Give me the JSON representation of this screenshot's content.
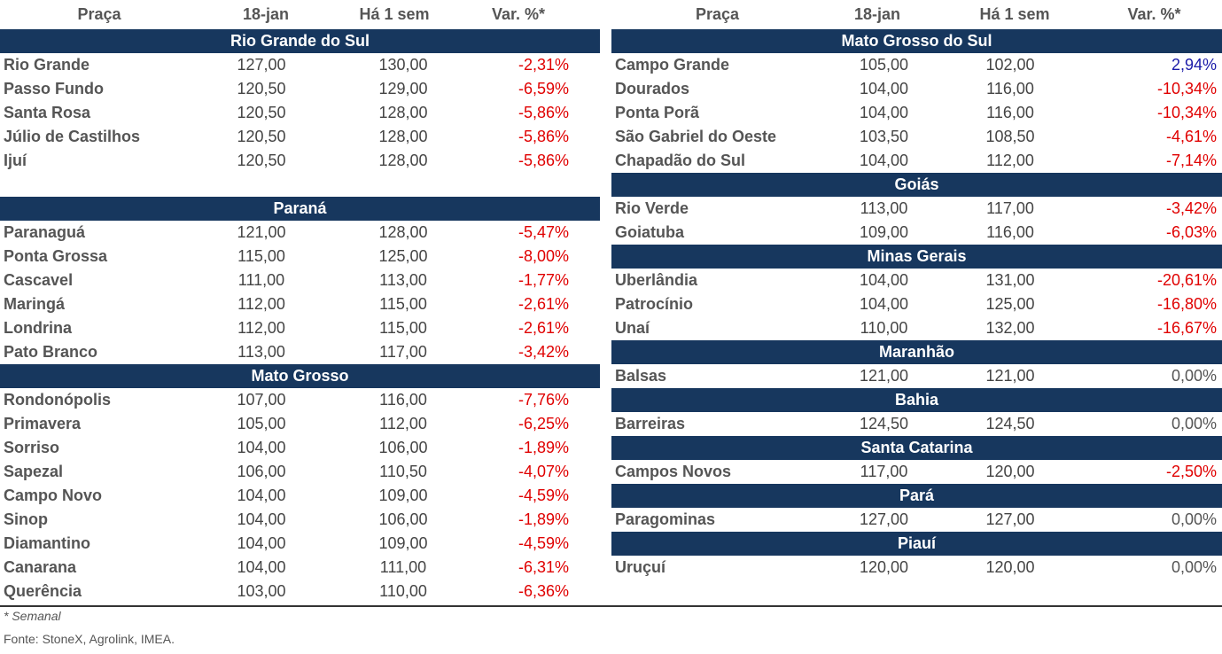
{
  "header": {
    "col_place": "Praça",
    "col_date": "18-jan",
    "col_week": "Há 1 sem",
    "col_var": "Var. %*"
  },
  "left": [
    {
      "section": "Rio Grande do Sul",
      "rows": [
        [
          "Rio Grande",
          "127,00",
          "130,00",
          "-2,31%"
        ],
        [
          "Passo Fundo",
          "120,50",
          "129,00",
          "-6,59%"
        ],
        [
          "Santa Rosa",
          "120,50",
          "128,00",
          "-5,86%"
        ],
        [
          "Júlio de Castilhos",
          "120,50",
          "128,00",
          "-5,86%"
        ],
        [
          "Ijuí",
          "120,50",
          "128,00",
          "-5,86%"
        ]
      ],
      "gap_after": true
    },
    {
      "section": "Paraná",
      "rows": [
        [
          "Paranaguá",
          "121,00",
          "128,00",
          "-5,47%"
        ],
        [
          "Ponta Grossa",
          "115,00",
          "125,00",
          "-8,00%"
        ],
        [
          "Cascavel",
          "111,00",
          "113,00",
          "-1,77%"
        ],
        [
          "Maringá",
          "112,00",
          "115,00",
          "-2,61%"
        ],
        [
          "Londrina",
          "112,00",
          "115,00",
          "-2,61%"
        ],
        [
          "Pato Branco",
          "113,00",
          "117,00",
          "-3,42%"
        ]
      ]
    },
    {
      "section": "Mato Grosso",
      "rows": [
        [
          "Rondonópolis",
          "107,00",
          "116,00",
          "-7,76%"
        ],
        [
          "Primavera",
          "105,00",
          "112,00",
          "-6,25%"
        ],
        [
          "Sorriso",
          "104,00",
          "106,00",
          "-1,89%"
        ],
        [
          "Sapezal",
          "106,00",
          "110,50",
          "-4,07%"
        ],
        [
          "Campo Novo",
          "104,00",
          "109,00",
          "-4,59%"
        ],
        [
          "Sinop",
          "104,00",
          "106,00",
          "-1,89%"
        ],
        [
          "Diamantino",
          "104,00",
          "109,00",
          "-4,59%"
        ],
        [
          "Canarana",
          "104,00",
          "111,00",
          "-6,31%"
        ],
        [
          "Querência",
          "103,00",
          "110,00",
          "-6,36%"
        ]
      ]
    }
  ],
  "right": [
    {
      "section": "Mato Grosso do Sul",
      "rows": [
        [
          "Campo Grande",
          "105,00",
          "102,00",
          "2,94%"
        ],
        [
          "Dourados",
          "104,00",
          "116,00",
          "-10,34%"
        ],
        [
          "Ponta Porã",
          "104,00",
          "116,00",
          "-10,34%"
        ],
        [
          "São Gabriel do Oeste",
          "103,50",
          "108,50",
          "-4,61%"
        ],
        [
          "Chapadão do Sul",
          "104,00",
          "112,00",
          "-7,14%"
        ]
      ]
    },
    {
      "section": "Goiás",
      "rows": [
        [
          "Rio Verde",
          "113,00",
          "117,00",
          "-3,42%"
        ],
        [
          "Goiatuba",
          "109,00",
          "116,00",
          "-6,03%"
        ]
      ]
    },
    {
      "section": "Minas Gerais",
      "rows": [
        [
          "Uberlândia",
          "104,00",
          "131,00",
          "-20,61%"
        ],
        [
          "Patrocínio",
          "104,00",
          "125,00",
          "-16,80%"
        ],
        [
          "Unaí",
          "110,00",
          "132,00",
          "-16,67%"
        ]
      ]
    },
    {
      "section": "Maranhão",
      "rows": [
        [
          "Balsas",
          "121,00",
          "121,00",
          "0,00%"
        ]
      ]
    },
    {
      "section": "Bahia",
      "rows": [
        [
          "Barreiras",
          "124,50",
          "124,50",
          "0,00%"
        ]
      ]
    },
    {
      "section": "Santa Catarina",
      "rows": [
        [
          "Campos Novos",
          "117,00",
          "120,00",
          "-2,50%"
        ]
      ]
    },
    {
      "section": "Pará",
      "rows": [
        [
          "Paragominas",
          "127,00",
          "127,00",
          "0,00%"
        ]
      ]
    },
    {
      "section": "Piauí",
      "rows": [
        [
          "Uruçuí",
          "120,00",
          "120,00",
          "0,00%"
        ]
      ]
    }
  ],
  "footer": {
    "note": "* Semanal",
    "source": "Fonte: StoneX, Agrolink, IMEA."
  }
}
